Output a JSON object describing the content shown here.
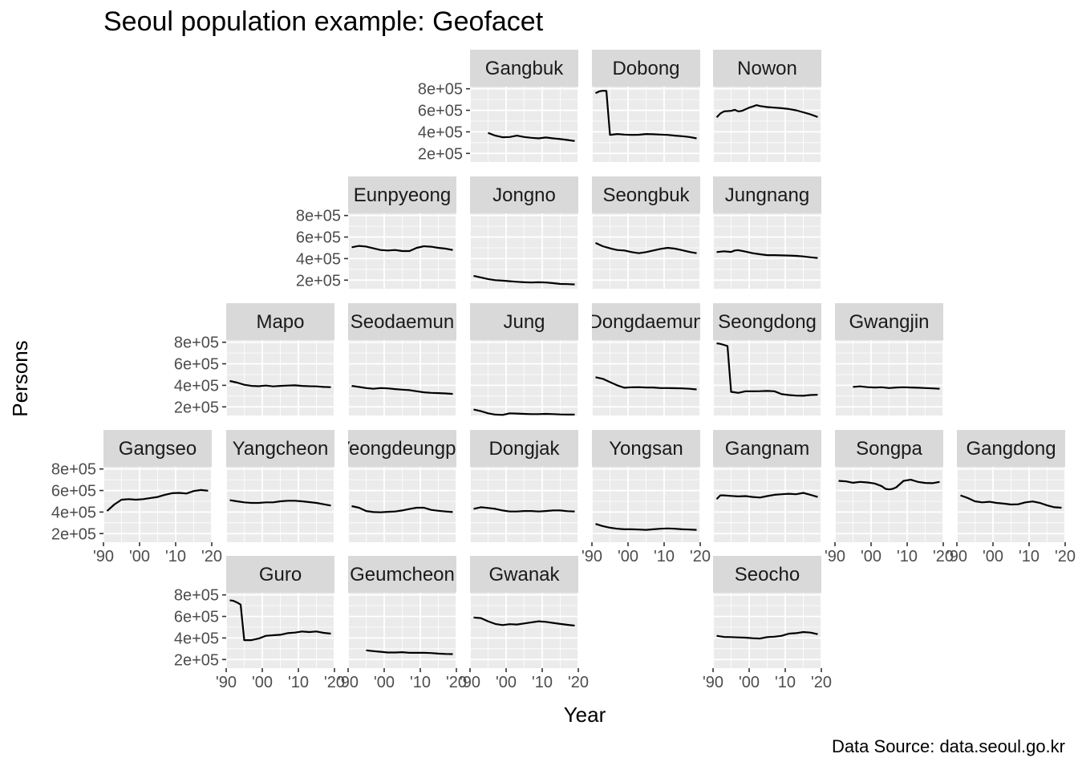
{
  "title": "Seoul population example: Geofacet",
  "xlabel": "Year",
  "ylabel": "Persons",
  "caption": "Data Source: data.seoul.go.kr",
  "colors": {
    "panel": "#ebebeb",
    "strip": "#d9d9d9",
    "line": "#000000",
    "grid": "#ffffff"
  },
  "chart_data": {
    "type": "line",
    "x_ticks": [
      1990,
      2000,
      2010,
      2020
    ],
    "x_tick_labels": [
      "'90",
      "'00",
      "'10",
      "'20"
    ],
    "y_ticks": [
      200000,
      400000,
      600000,
      800000
    ],
    "y_tick_labels": [
      "2e+05",
      "4e+05",
      "6e+05",
      "8e+05"
    ],
    "xlim": [
      1990,
      2020
    ],
    "ylim": [
      120000,
      820000
    ],
    "grid": true,
    "facets": [
      {
        "name": "Gangbuk",
        "row": 0,
        "col": 3,
        "x": [
          1995,
          1997,
          1999,
          2001,
          2003,
          2005,
          2007,
          2009,
          2011,
          2013,
          2015,
          2017,
          2019
        ],
        "y": [
          390000,
          365000,
          350000,
          352000,
          365000,
          352000,
          345000,
          340000,
          348000,
          340000,
          333000,
          325000,
          315000
        ]
      },
      {
        "name": "Dobong",
        "row": 0,
        "col": 4,
        "x": [
          1991,
          1992,
          1993,
          1994,
          1995,
          1997,
          1999,
          2001,
          2003,
          2005,
          2007,
          2009,
          2011,
          2013,
          2015,
          2017,
          2019
        ],
        "y": [
          760000,
          775000,
          782000,
          780000,
          372000,
          380000,
          375000,
          372000,
          373000,
          380000,
          378000,
          375000,
          372000,
          365000,
          360000,
          352000,
          340000
        ]
      },
      {
        "name": "Nowon",
        "row": 0,
        "col": 5,
        "x": [
          1991,
          1992,
          1993,
          1995,
          1996,
          1997,
          1998,
          1999,
          2000,
          2001,
          2002,
          2003,
          2005,
          2007,
          2009,
          2011,
          2013,
          2015,
          2017,
          2019
        ],
        "y": [
          535000,
          570000,
          590000,
          595000,
          605000,
          590000,
          595000,
          610000,
          625000,
          635000,
          648000,
          640000,
          630000,
          625000,
          620000,
          612000,
          600000,
          582000,
          562000,
          538000
        ]
      },
      {
        "name": "Eunpyeong",
        "row": 1,
        "col": 2,
        "x": [
          1991,
          1993,
          1995,
          1997,
          1999,
          2001,
          2003,
          2005,
          2007,
          2009,
          2011,
          2013,
          2015,
          2017,
          2019
        ],
        "y": [
          505000,
          518000,
          512000,
          495000,
          480000,
          475000,
          480000,
          470000,
          470000,
          500000,
          515000,
          510000,
          500000,
          492000,
          480000
        ]
      },
      {
        "name": "Jongno",
        "row": 1,
        "col": 3,
        "x": [
          1991,
          1993,
          1995,
          1997,
          1999,
          2001,
          2003,
          2005,
          2007,
          2009,
          2011,
          2013,
          2015,
          2017,
          2019
        ],
        "y": [
          240000,
          225000,
          210000,
          200000,
          195000,
          190000,
          185000,
          180000,
          178000,
          180000,
          178000,
          172000,
          165000,
          163000,
          160000
        ]
      },
      {
        "name": "Seongbuk",
        "row": 1,
        "col": 4,
        "x": [
          1991,
          1993,
          1995,
          1997,
          1999,
          2001,
          2003,
          2005,
          2007,
          2009,
          2011,
          2013,
          2015,
          2017,
          2019
        ],
        "y": [
          545000,
          515000,
          495000,
          480000,
          475000,
          460000,
          450000,
          460000,
          475000,
          490000,
          500000,
          492000,
          478000,
          462000,
          450000
        ]
      },
      {
        "name": "Jungnang",
        "row": 1,
        "col": 5,
        "x": [
          1991,
          1993,
          1995,
          1996,
          1997,
          1999,
          2001,
          2003,
          2005,
          2007,
          2009,
          2011,
          2013,
          2015,
          2017,
          2019
        ],
        "y": [
          460000,
          468000,
          462000,
          475000,
          478000,
          465000,
          450000,
          440000,
          432000,
          432000,
          430000,
          428000,
          425000,
          420000,
          412000,
          405000
        ]
      },
      {
        "name": "Mapo",
        "row": 2,
        "col": 1,
        "x": [
          1991,
          1993,
          1995,
          1997,
          1999,
          2001,
          2003,
          2005,
          2007,
          2009,
          2011,
          2013,
          2015,
          2017,
          2019
        ],
        "y": [
          440000,
          425000,
          405000,
          395000,
          392000,
          398000,
          390000,
          395000,
          398000,
          400000,
          395000,
          392000,
          390000,
          385000,
          383000
        ]
      },
      {
        "name": "Seodaemun",
        "row": 2,
        "col": 2,
        "x": [
          1991,
          1993,
          1995,
          1997,
          1999,
          2001,
          2003,
          2005,
          2007,
          2009,
          2011,
          2013,
          2015,
          2017,
          2019
        ],
        "y": [
          395000,
          385000,
          375000,
          368000,
          375000,
          372000,
          365000,
          360000,
          355000,
          345000,
          335000,
          330000,
          328000,
          325000,
          320000
        ]
      },
      {
        "name": "Jung",
        "row": 2,
        "col": 3,
        "x": [
          1991,
          1993,
          1995,
          1997,
          1999,
          2001,
          2003,
          2005,
          2007,
          2009,
          2011,
          2013,
          2015,
          2017,
          2019
        ],
        "y": [
          175000,
          160000,
          140000,
          128000,
          125000,
          140000,
          138000,
          135000,
          133000,
          133000,
          135000,
          133000,
          130000,
          128000,
          128000
        ]
      },
      {
        "name": "Dongdaemun",
        "row": 2,
        "col": 4,
        "x": [
          1991,
          1993,
          1995,
          1997,
          1999,
          2001,
          2003,
          2005,
          2007,
          2009,
          2011,
          2013,
          2015,
          2017,
          2019
        ],
        "y": [
          475000,
          460000,
          430000,
          400000,
          378000,
          382000,
          383000,
          380000,
          380000,
          375000,
          375000,
          373000,
          372000,
          368000,
          362000
        ]
      },
      {
        "name": "Seongdong",
        "row": 2,
        "col": 5,
        "x": [
          1991,
          1992,
          1993,
          1994,
          1995,
          1996,
          1997,
          1999,
          2001,
          2003,
          2005,
          2007,
          2009,
          2011,
          2013,
          2015,
          2017,
          2019
        ],
        "y": [
          790000,
          785000,
          775000,
          765000,
          340000,
          335000,
          330000,
          345000,
          345000,
          346000,
          348000,
          345000,
          318000,
          310000,
          305000,
          303000,
          310000,
          312000
        ]
      },
      {
        "name": "Gwangjin",
        "row": 2,
        "col": 6,
        "x": [
          1995,
          1997,
          1999,
          2001,
          2003,
          2005,
          2007,
          2009,
          2011,
          2013,
          2015,
          2017,
          2019
        ],
        "y": [
          385000,
          390000,
          383000,
          380000,
          382000,
          375000,
          380000,
          382000,
          380000,
          378000,
          375000,
          372000,
          368000
        ]
      },
      {
        "name": "Gangseo",
        "row": 3,
        "col": 0,
        "x": [
          1991,
          1993,
          1995,
          1997,
          1999,
          2001,
          2003,
          2005,
          2007,
          2009,
          2011,
          2013,
          2015,
          2017,
          2019
        ],
        "y": [
          410000,
          470000,
          515000,
          520000,
          515000,
          520000,
          530000,
          540000,
          560000,
          575000,
          578000,
          572000,
          595000,
          605000,
          598000
        ]
      },
      {
        "name": "Yangcheon",
        "row": 3,
        "col": 1,
        "x": [
          1991,
          1993,
          1995,
          1997,
          1999,
          2001,
          2003,
          2005,
          2007,
          2009,
          2011,
          2013,
          2015,
          2017,
          2019
        ],
        "y": [
          510000,
          500000,
          490000,
          485000,
          485000,
          490000,
          490000,
          500000,
          505000,
          505000,
          500000,
          492000,
          485000,
          472000,
          460000
        ]
      },
      {
        "name": "Yeongdeungpo",
        "row": 3,
        "col": 2,
        "x": [
          1991,
          1993,
          1995,
          1997,
          1999,
          2001,
          2003,
          2005,
          2007,
          2009,
          2011,
          2013,
          2015,
          2017,
          2019
        ],
        "y": [
          455000,
          440000,
          410000,
          400000,
          398000,
          402000,
          405000,
          415000,
          428000,
          440000,
          440000,
          420000,
          412000,
          405000,
          400000
        ]
      },
      {
        "name": "Dongjak",
        "row": 3,
        "col": 3,
        "x": [
          1991,
          1993,
          1995,
          1997,
          1999,
          2001,
          2003,
          2005,
          2007,
          2009,
          2011,
          2013,
          2015,
          2017,
          2019
        ],
        "y": [
          430000,
          445000,
          438000,
          430000,
          415000,
          405000,
          405000,
          410000,
          410000,
          405000,
          410000,
          415000,
          415000,
          408000,
          405000
        ]
      },
      {
        "name": "Yongsan",
        "row": 3,
        "col": 4,
        "x": [
          1991,
          1993,
          1995,
          1997,
          1999,
          2001,
          2003,
          2005,
          2007,
          2009,
          2011,
          2013,
          2015,
          2017,
          2019
        ],
        "y": [
          290000,
          270000,
          255000,
          245000,
          240000,
          240000,
          238000,
          235000,
          240000,
          245000,
          248000,
          245000,
          240000,
          238000,
          235000
        ]
      },
      {
        "name": "Gangnam",
        "row": 3,
        "col": 5,
        "x": [
          1991,
          1992,
          1993,
          1995,
          1997,
          1999,
          2001,
          2003,
          2005,
          2007,
          2009,
          2011,
          2013,
          2015,
          2017,
          2019
        ],
        "y": [
          520000,
          555000,
          555000,
          550000,
          545000,
          548000,
          540000,
          535000,
          548000,
          560000,
          565000,
          570000,
          565000,
          578000,
          560000,
          540000
        ]
      },
      {
        "name": "Songpa",
        "row": 3,
        "col": 6,
        "x": [
          1991,
          1993,
          1995,
          1997,
          1999,
          2001,
          2003,
          2004,
          2005,
          2006,
          2007,
          2009,
          2011,
          2013,
          2015,
          2017,
          2019
        ],
        "y": [
          690000,
          685000,
          672000,
          680000,
          675000,
          665000,
          640000,
          615000,
          610000,
          615000,
          630000,
          690000,
          700000,
          680000,
          670000,
          668000,
          680000
        ]
      },
      {
        "name": "Gangdong",
        "row": 3,
        "col": 7,
        "x": [
          1991,
          1993,
          1995,
          1997,
          1999,
          2001,
          2003,
          2005,
          2007,
          2009,
          2011,
          2013,
          2015,
          2017,
          2019
        ],
        "y": [
          555000,
          530000,
          500000,
          490000,
          495000,
          485000,
          478000,
          470000,
          472000,
          490000,
          498000,
          485000,
          462000,
          445000,
          440000
        ]
      },
      {
        "name": "Guro",
        "row": 4,
        "col": 1,
        "x": [
          1991,
          1992,
          1993,
          1994,
          1995,
          1997,
          1999,
          2001,
          2003,
          2005,
          2007,
          2009,
          2011,
          2013,
          2015,
          2017,
          2019
        ],
        "y": [
          750000,
          745000,
          730000,
          710000,
          380000,
          380000,
          395000,
          420000,
          425000,
          430000,
          445000,
          450000,
          460000,
          455000,
          460000,
          448000,
          440000
        ]
      },
      {
        "name": "Geumcheon",
        "row": 4,
        "col": 2,
        "x": [
          1995,
          1997,
          1999,
          2001,
          2003,
          2005,
          2007,
          2009,
          2011,
          2013,
          2015,
          2017,
          2019
        ],
        "y": [
          285000,
          278000,
          272000,
          265000,
          265000,
          268000,
          262000,
          262000,
          262000,
          260000,
          255000,
          252000,
          250000
        ]
      },
      {
        "name": "Gwanak",
        "row": 4,
        "col": 3,
        "x": [
          1991,
          1993,
          1995,
          1997,
          1999,
          2001,
          2003,
          2005,
          2007,
          2009,
          2011,
          2013,
          2015,
          2017,
          2019
        ],
        "y": [
          590000,
          585000,
          555000,
          530000,
          520000,
          528000,
          525000,
          535000,
          545000,
          555000,
          550000,
          540000,
          530000,
          522000,
          515000
        ]
      },
      {
        "name": "Seocho",
        "row": 4,
        "col": 5,
        "x": [
          1991,
          1993,
          1995,
          1997,
          1999,
          2001,
          2003,
          2005,
          2007,
          2009,
          2011,
          2013,
          2015,
          2017,
          2019
        ],
        "y": [
          420000,
          410000,
          408000,
          405000,
          403000,
          398000,
          395000,
          408000,
          412000,
          420000,
          440000,
          445000,
          455000,
          450000,
          435000
        ]
      }
    ],
    "y_axis_rows": [
      0,
      1,
      2,
      3,
      4
    ],
    "x_axis_cols": [
      {
        "col": 0,
        "row": 3
      },
      {
        "col": 1,
        "row": 4
      },
      {
        "col": 2,
        "row": 4
      },
      {
        "col": 3,
        "row": 4
      },
      {
        "col": 4,
        "row": 3
      },
      {
        "col": 5,
        "row": 4
      },
      {
        "col": 6,
        "row": 3
      },
      {
        "col": 7,
        "row": 3
      }
    ]
  }
}
